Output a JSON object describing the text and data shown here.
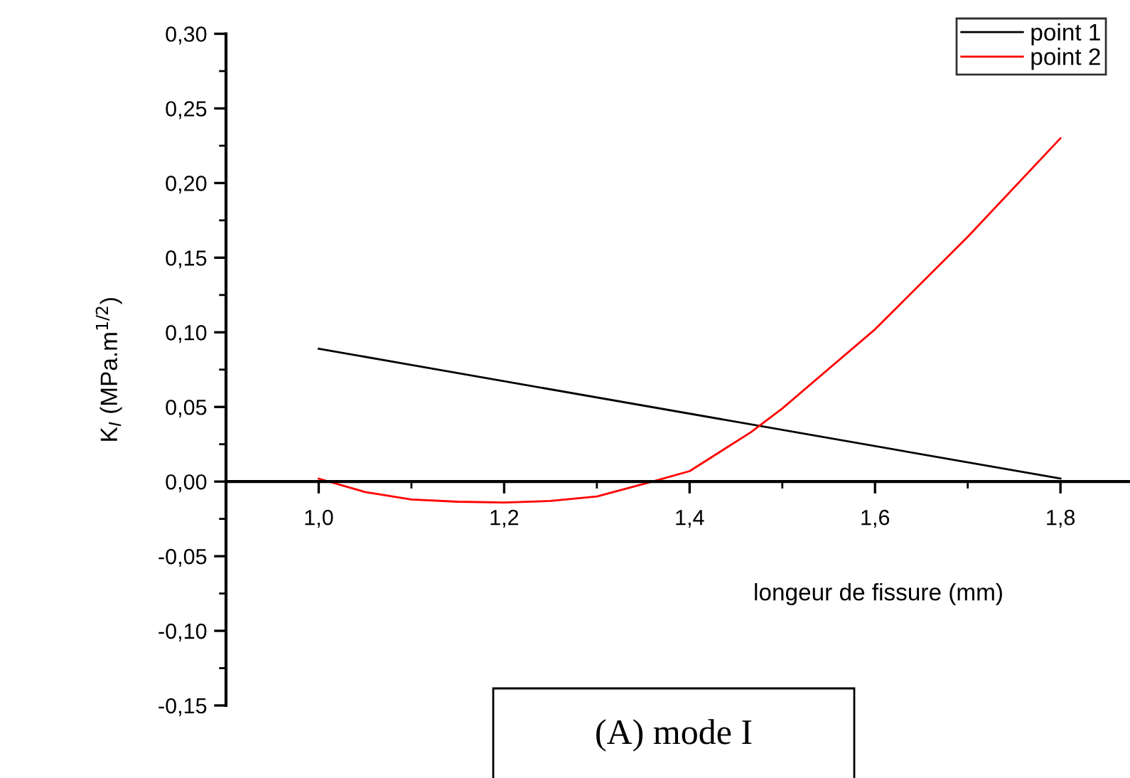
{
  "chart_data": {
    "type": "line",
    "x": [
      1.0,
      1.05,
      1.1,
      1.15,
      1.2,
      1.25,
      1.3,
      1.36,
      1.4,
      1.466,
      1.5,
      1.6,
      1.7,
      1.8
    ],
    "series": [
      {
        "name": "point 1",
        "color": "#000000",
        "x": [
          1.0,
          1.8
        ],
        "values": [
          0.089,
          0.002
        ]
      },
      {
        "name": "point 2",
        "color": "#ff0000",
        "values": [
          0.002,
          -0.007,
          -0.012,
          -0.0135,
          -0.014,
          -0.013,
          -0.01,
          0.0,
          0.007,
          0.033,
          0.049,
          0.102,
          0.164,
          0.23
        ]
      }
    ],
    "xlabel": "longeur de fissure (mm)",
    "ylabel": "K$_{I}$ (MPa.m$^{1/2}$)",
    "xlim": [
      0.9,
      1.875
    ],
    "xticks": [
      {
        "value": 1.0,
        "label": "1,0"
      },
      {
        "value": 1.2,
        "label": "1,2"
      },
      {
        "value": 1.4,
        "label": "1,4"
      },
      {
        "value": 1.6,
        "label": "1,6"
      },
      {
        "value": 1.8,
        "label": "1,8"
      }
    ],
    "ylim": [
      -0.15,
      0.3
    ],
    "yticks": [
      {
        "value": -0.15,
        "label": "-0,15"
      },
      {
        "value": -0.1,
        "label": "-0,10"
      },
      {
        "value": -0.05,
        "label": "-0,05"
      },
      {
        "value": 0.0,
        "label": "0,00"
      },
      {
        "value": 0.05,
        "label": "0,05"
      },
      {
        "value": 0.1,
        "label": "0,10"
      },
      {
        "value": 0.15,
        "label": "0,15"
      },
      {
        "value": 0.2,
        "label": "0,20"
      },
      {
        "value": 0.25,
        "label": "0,25"
      },
      {
        "value": 0.3,
        "label": "0,30"
      }
    ],
    "annotations": [
      "(A) mode I"
    ],
    "legend": "top right",
    "grid": false,
    "marker": "none",
    "line_style": "solid"
  }
}
